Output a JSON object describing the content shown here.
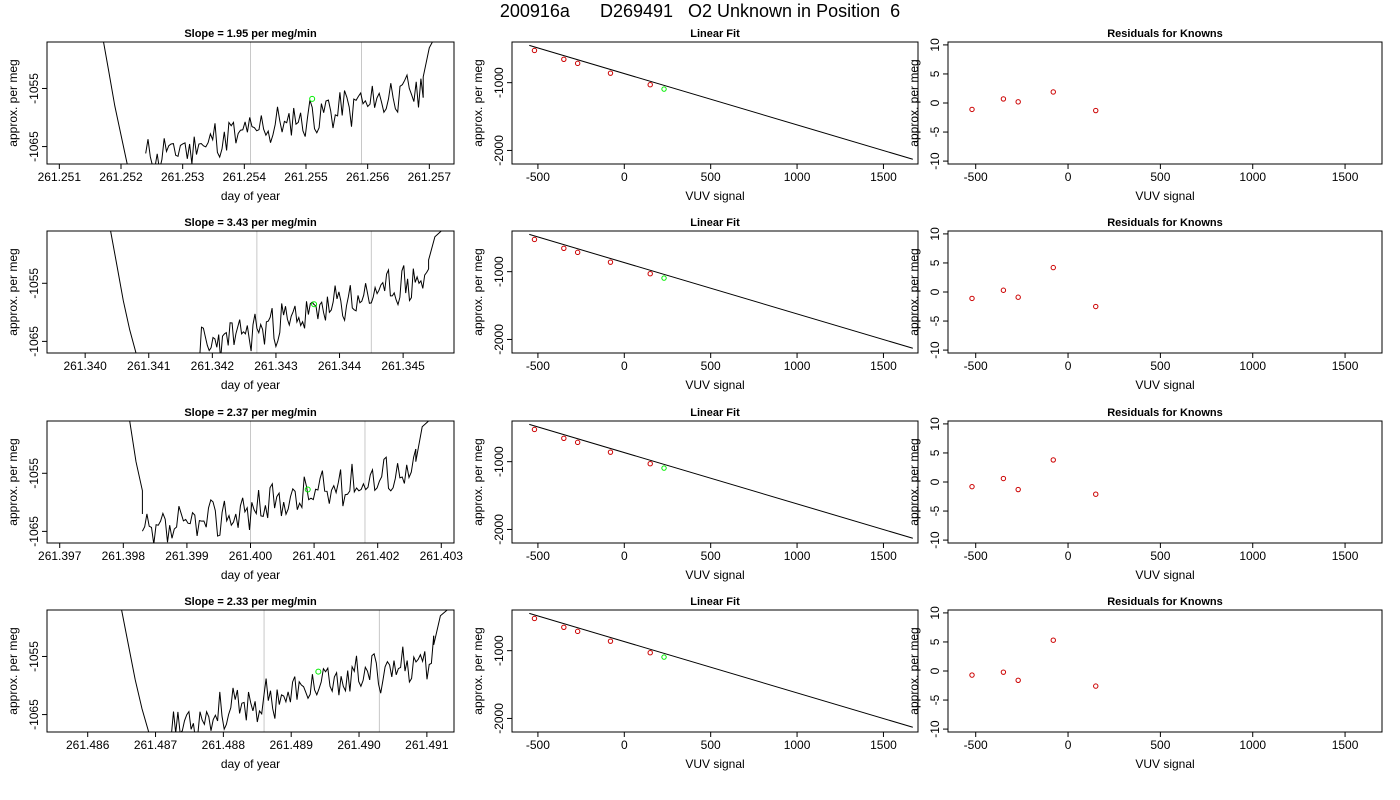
{
  "title": "200916a      D269491   O2 Unknown in Position  6",
  "colors": {
    "data": "#000000",
    "guide": "#c8c8c8",
    "unknown": "#00ee00",
    "known": "#cc0000"
  },
  "rows": [
    {
      "slope_title": "Slope =  1.95  per meg/min",
      "time": {
        "xlim": [
          261.2508,
          261.2574
        ],
        "ylim": [
          -1068,
          -1047
        ],
        "xticks": [
          "261.251",
          "261.252",
          "261.253",
          "261.254",
          "261.255",
          "261.256",
          "261.257"
        ],
        "yticks": [
          "-1055",
          "-1065"
        ],
        "guides": [
          261.2541,
          261.2559
        ],
        "marker": [
          261.2551,
          -1056.8
        ],
        "start": 261.2524,
        "end": 261.2569,
        "drop": [
          [
            261.2517,
            -1046
          ],
          [
            261.2518,
            -1052
          ],
          [
            261.2519,
            -1058
          ],
          [
            261.252,
            -1063
          ],
          [
            261.2521,
            -1068
          ]
        ],
        "rise": [
          [
            261.2569,
            -1053
          ],
          [
            261.257,
            -1048
          ],
          [
            261.2571,
            -1046
          ]
        ],
        "seed": 11
      },
      "resid": [
        -1.1,
        0.7,
        0.2,
        1.9,
        -1.3
      ]
    },
    {
      "slope_title": "Slope =  3.43  per meg/min",
      "time": {
        "xlim": [
          261.3394,
          261.3458
        ],
        "ylim": [
          -1067,
          -1046
        ],
        "xticks": [
          "261.340",
          "261.341",
          "261.342",
          "261.343",
          "261.344",
          "261.345"
        ],
        "yticks": [
          "-1055",
          "-1065"
        ],
        "guides": [
          261.3427,
          261.3445
        ],
        "marker": [
          261.3436,
          -1058.6
        ],
        "start": 261.3418,
        "end": 261.3454,
        "drop": [
          [
            261.3404,
            -1046
          ],
          [
            261.3405,
            -1052
          ],
          [
            261.3406,
            -1058
          ],
          [
            261.3407,
            -1063
          ],
          [
            261.3408,
            -1067
          ]
        ],
        "rise": [
          [
            261.3454,
            -1051
          ],
          [
            261.3455,
            -1047
          ],
          [
            261.3456,
            -1046
          ]
        ],
        "seed": 23
      },
      "resid": [
        -1.1,
        0.3,
        -0.9,
        4.2,
        -2.5
      ]
    },
    {
      "slope_title": "Slope =  2.37  per meg/min",
      "time": {
        "xlim": [
          261.3968,
          261.4032
        ],
        "ylim": [
          -1067,
          -1046
        ],
        "xticks": [
          "261.397",
          "261.398",
          "261.399",
          "261.400",
          "261.401",
          "261.402",
          "261.403"
        ],
        "yticks": [
          "-1055",
          "-1065"
        ],
        "guides": [
          261.4,
          261.4018
        ],
        "marker": [
          261.4009,
          -1057.8
        ],
        "start": 261.3983,
        "end": 261.4026,
        "drop": [
          [
            261.3981,
            -1046
          ],
          [
            261.3982,
            -1053
          ],
          [
            261.3983,
            -1058
          ],
          [
            261.3983,
            -1062
          ]
        ],
        "rise": [
          [
            261.4026,
            -1053
          ],
          [
            261.4027,
            -1047
          ],
          [
            261.4028,
            -1046
          ]
        ],
        "seed": 37
      },
      "resid": [
        -0.8,
        0.6,
        -1.3,
        3.8,
        -2.1
      ]
    },
    {
      "slope_title": "Slope =  2.33  per meg/min",
      "time": {
        "xlim": [
          261.4854,
          261.4914
        ],
        "ylim": [
          -1068,
          -1047
        ],
        "xticks": [
          "261.486",
          "261.487",
          "261.488",
          "261.489",
          "261.490",
          "261.491"
        ],
        "yticks": [
          "-1055",
          "-1065"
        ],
        "guides": [
          261.4886,
          261.4903
        ],
        "marker": [
          261.4894,
          -1057.6
        ],
        "start": 261.4872,
        "end": 261.4911,
        "drop": [
          [
            261.4865,
            -1047
          ],
          [
            261.4866,
            -1053
          ],
          [
            261.4867,
            -1059
          ],
          [
            261.4868,
            -1064
          ],
          [
            261.4869,
            -1068
          ]
        ],
        "rise": [
          [
            261.4911,
            -1053
          ],
          [
            261.4912,
            -1048
          ],
          [
            261.4913,
            -1047
          ]
        ],
        "seed": 53
      },
      "resid": [
        -0.7,
        -0.2,
        -1.6,
        5.3,
        -2.6
      ]
    }
  ],
  "fit_title": "Linear Fit",
  "resid_title": "Residuals for Knowns",
  "ylabel": "approx. per meg",
  "xlabel_time": "day of year",
  "xlabel_vuv": "VUV signal",
  "chart_data": [
    {
      "type": "line",
      "title": "Linear Fit",
      "xlabel": "VUV signal",
      "ylabel": "approx. per meg",
      "xlim": [
        -650,
        1700
      ],
      "ylim": [
        -2200,
        -400
      ],
      "xticks": [
        "-500",
        "0",
        "500",
        "1000",
        "1500"
      ],
      "yticks": [
        "-1000",
        "-2000"
      ],
      "line": {
        "x": [
          -550,
          1670
        ],
        "y": [
          -450,
          -2130
        ]
      },
      "knowns": {
        "x": [
          -520,
          -350,
          -270,
          -80,
          150
        ],
        "y": [
          -525,
          -655,
          -715,
          -860,
          -1030
        ]
      },
      "unknown": {
        "x": [
          230
        ],
        "y": [
          -1095
        ]
      }
    },
    {
      "type": "scatter",
      "title": "Residuals for Knowns",
      "xlabel": "VUV signal",
      "xlim": [
        -650,
        1700
      ],
      "ylim": [
        -10.5,
        10.5
      ],
      "xticks": [
        "-500",
        "0",
        "500",
        "1000",
        "1500"
      ],
      "yticks": [
        "-10",
        "-5",
        "0",
        "5",
        "10"
      ],
      "x": [
        -520,
        -350,
        -270,
        -80,
        150
      ]
    }
  ]
}
